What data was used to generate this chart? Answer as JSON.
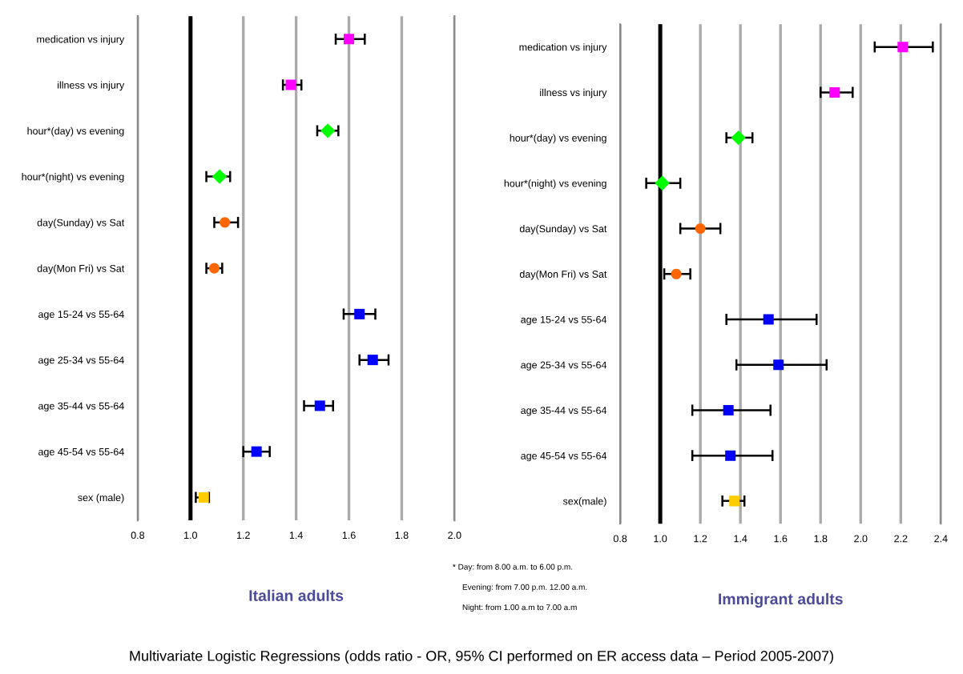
{
  "chart_data": [
    {
      "type": "scatter",
      "orientation": "horizontal",
      "xlabel": "Italian adults",
      "categories": [
        "medication vs injury",
        "illness vs injury",
        "hour*(day) vs evening",
        "hour*(night) vs evening",
        "day(Sunday) vs Sat",
        "day(Mon Fri) vs Sat",
        "age 15-24 vs 55-64",
        "age 25-34 vs 55-64",
        "age 35-44 vs 55-64",
        "age 45-54 vs 55-64",
        "sex (male)"
      ],
      "series": [
        {
          "color": "#ff00ff",
          "marker": "square",
          "values": [
            1.6,
            1.38,
            null,
            null,
            null,
            null,
            null,
            null,
            null,
            null,
            null
          ],
          "errors": [
            [
              1.55,
              1.66
            ],
            [
              1.35,
              1.42
            ],
            null,
            null,
            null,
            null,
            null,
            null,
            null,
            null,
            null
          ]
        },
        {
          "color": "#00ff00",
          "marker": "diamond",
          "values": [
            null,
            null,
            1.52,
            1.11,
            null,
            null,
            null,
            null,
            null,
            null,
            null
          ],
          "errors": [
            null,
            null,
            [
              1.48,
              1.56
            ],
            [
              1.06,
              1.15
            ],
            null,
            null,
            null,
            null,
            null,
            null,
            null
          ]
        },
        {
          "color": "#ff6600",
          "marker": "circle",
          "values": [
            null,
            null,
            null,
            null,
            1.13,
            1.09,
            null,
            null,
            null,
            null,
            null
          ],
          "errors": [
            null,
            null,
            null,
            null,
            [
              1.09,
              1.18
            ],
            [
              1.06,
              1.12
            ],
            null,
            null,
            null,
            null,
            null
          ]
        },
        {
          "color": "#0000ff",
          "marker": "square",
          "values": [
            null,
            null,
            null,
            null,
            null,
            null,
            1.64,
            1.69,
            1.49,
            1.25,
            null
          ],
          "errors": [
            null,
            null,
            null,
            null,
            null,
            null,
            [
              1.58,
              1.7
            ],
            [
              1.64,
              1.75
            ],
            [
              1.43,
              1.54
            ],
            [
              1.2,
              1.3
            ],
            null
          ]
        },
        {
          "color": "#ffcc00",
          "marker": "square",
          "values": [
            null,
            null,
            null,
            null,
            null,
            null,
            null,
            null,
            null,
            null,
            1.05
          ],
          "errors": [
            null,
            null,
            null,
            null,
            null,
            null,
            null,
            null,
            null,
            null,
            [
              1.02,
              1.07
            ]
          ]
        }
      ],
      "xlim": [
        0.8,
        2.0
      ],
      "xticks": [
        {
          "value": 0.8,
          "label": "0.8"
        },
        {
          "value": 1,
          "label": "1.0"
        },
        {
          "value": 1.2,
          "label": "1.2"
        },
        {
          "value": 1.4,
          "label": "1.4"
        },
        {
          "value": 1.6,
          "label": "1.6"
        },
        {
          "value": 1.8,
          "label": "1.8"
        },
        {
          "value": 2,
          "label": "2.0"
        }
      ],
      "grid": "x",
      "legend": false,
      "ref_lines": [
        {
          "axis": "x",
          "value": 1.0,
          "color": "#000000"
        }
      ],
      "annotations": [
        "* Day: from 8.00 a.m. to 6.00 p.m.",
        "Evening: from 7.00 p.m. 12.00 a.m.",
        "Night: from 1.00 a.m to 7.00 a.m",
        "Multivariate Logistic Regressions (odds ratio - OR, 95% CI performed on ER access data – Period 2005-2007)"
      ]
    },
    {
      "type": "scatter",
      "orientation": "horizontal",
      "xlabel": "Immigrant adults",
      "categories": [
        "medication vs injury",
        "illness vs injury",
        "hour*(day) vs evening",
        "hour*(night) vs evening",
        "day(Sunday) vs Sat",
        "day(Mon Fri) vs Sat",
        "age 15-24 vs 55-64",
        "age 25-34 vs 55-64",
        "age 35-44 vs 55-64",
        "age 45-54 vs 55-64",
        "sex(male)"
      ],
      "series": [
        {
          "color": "#ff00ff",
          "marker": "square",
          "values": [
            2.21,
            1.87,
            null,
            null,
            null,
            null,
            null,
            null,
            null,
            null,
            null
          ],
          "errors": [
            [
              2.07,
              2.36
            ],
            [
              1.8,
              1.96
            ],
            null,
            null,
            null,
            null,
            null,
            null,
            null,
            null,
            null
          ]
        },
        {
          "color": "#00ff00",
          "marker": "diamond",
          "values": [
            null,
            null,
            1.39,
            1.01,
            null,
            null,
            null,
            null,
            null,
            null,
            null
          ],
          "errors": [
            null,
            null,
            [
              1.33,
              1.46
            ],
            [
              0.93,
              1.1
            ],
            null,
            null,
            null,
            null,
            null,
            null,
            null
          ]
        },
        {
          "color": "#ff6600",
          "marker": "circle",
          "values": [
            null,
            null,
            null,
            null,
            1.2,
            1.08,
            null,
            null,
            null,
            null,
            null
          ],
          "errors": [
            null,
            null,
            null,
            null,
            [
              1.1,
              1.3
            ],
            [
              1.02,
              1.15
            ],
            null,
            null,
            null,
            null,
            null
          ]
        },
        {
          "color": "#0000ff",
          "marker": "square",
          "values": [
            null,
            null,
            null,
            null,
            null,
            null,
            1.54,
            1.59,
            1.34,
            1.35,
            null
          ],
          "errors": [
            null,
            null,
            null,
            null,
            null,
            null,
            [
              1.33,
              1.78
            ],
            [
              1.38,
              1.83
            ],
            [
              1.16,
              1.55
            ],
            [
              1.16,
              1.56
            ],
            null
          ]
        },
        {
          "color": "#ffcc00",
          "marker": "square",
          "values": [
            null,
            null,
            null,
            null,
            null,
            null,
            null,
            null,
            null,
            null,
            1.37
          ],
          "errors": [
            null,
            null,
            null,
            null,
            null,
            null,
            null,
            null,
            null,
            null,
            [
              1.31,
              1.42
            ]
          ]
        }
      ],
      "xlim": [
        0.8,
        2.4
      ],
      "xticks": [
        {
          "value": 0.8,
          "label": "0.8"
        },
        {
          "value": 1,
          "label": "1.0"
        },
        {
          "value": 1.2,
          "label": "1.2"
        },
        {
          "value": 1.4,
          "label": "1.4"
        },
        {
          "value": 1.6,
          "label": "1.6"
        },
        {
          "value": 1.8,
          "label": "1.8"
        },
        {
          "value": 2,
          "label": "2.0"
        },
        {
          "value": 2.2,
          "label": "2.2"
        },
        {
          "value": 2.4,
          "label": "2.4"
        }
      ],
      "grid": "x",
      "legend": false,
      "ref_lines": [
        {
          "axis": "x",
          "value": 1.0,
          "color": "#000000"
        }
      ]
    }
  ]
}
